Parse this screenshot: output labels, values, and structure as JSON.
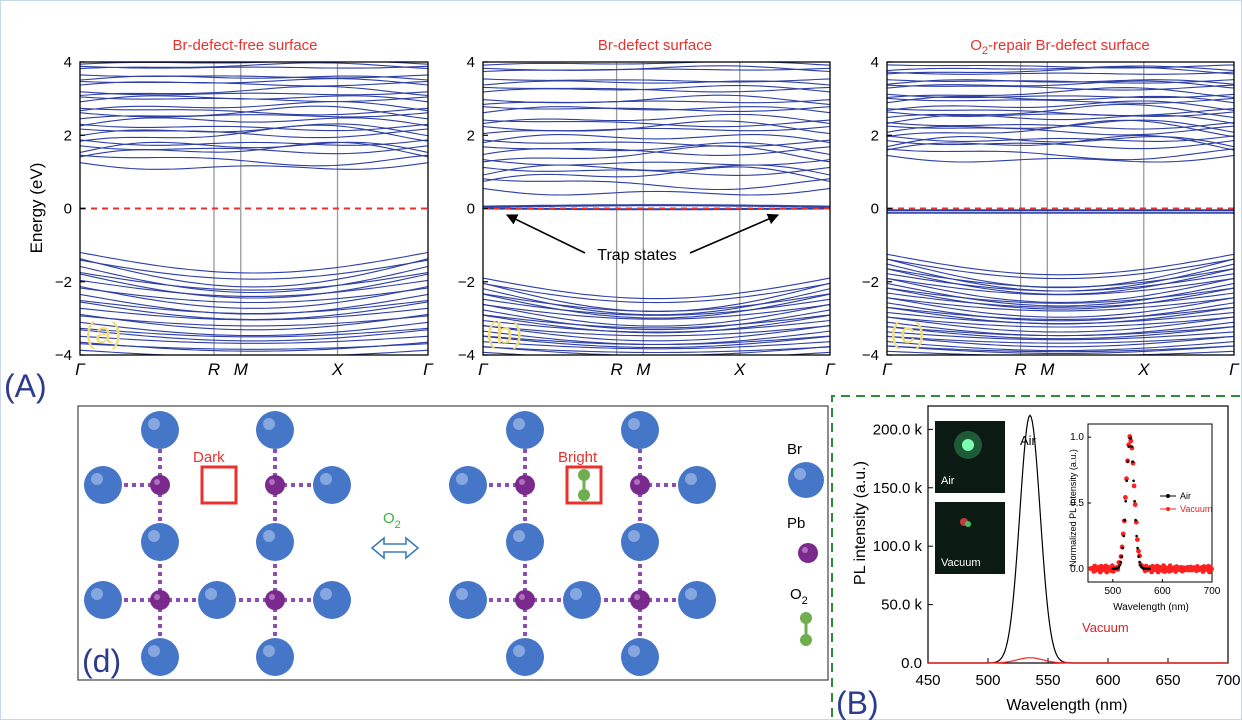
{
  "figure": {
    "label_A": "(A)",
    "label_B": "(B)",
    "label_d": "(d)"
  },
  "band_panels": {
    "ylabel": "Energy (eV)",
    "yticks": [
      "4",
      "2",
      "0",
      "−2",
      "−4"
    ],
    "xticks": [
      "Γ",
      "R",
      "M",
      "X",
      "Γ"
    ],
    "panels": [
      {
        "title": "Br-defect-free surface",
        "label": "(a)"
      },
      {
        "title": "Br-defect surface",
        "label": "(b)",
        "annotation": "Trap states"
      },
      {
        "title_prefix": "O",
        "title_sub": "2",
        "title_rest": "-repair Br-defect surface",
        "label": "(c)"
      }
    ]
  },
  "schematic": {
    "dark_label": "Dark",
    "bright_label": "Bright",
    "arrow_label_prefix": "O",
    "arrow_label_sub": "2",
    "legend": [
      {
        "name": "Br",
        "color": "#3f6fc4"
      },
      {
        "name": "Pb",
        "color": "#7a2a8c"
      },
      {
        "name_prefix": "O",
        "name_sub": "2",
        "color": "#6fae4f"
      }
    ]
  },
  "pl_panel": {
    "photo_labels": [
      "Air",
      "Vacuum"
    ],
    "air_label": "Air",
    "vacuum_label": "Vacuum",
    "inset_legend": [
      "Air",
      "Vacuum"
    ]
  },
  "chart_data": [
    {
      "type": "line",
      "title": "Br-defect-free surface",
      "ylabel": "Energy (eV)",
      "ylim": [
        -4,
        4
      ],
      "x_ticks": [
        "Γ",
        "R",
        "M",
        "X",
        "Γ"
      ],
      "series": [
        {
          "values": [
            0,
            0,
            0,
            0,
            0
          ]
        }
      ]
    },
    {
      "type": "line",
      "title": "Br-defect surface",
      "ylim": [
        -4,
        4
      ],
      "x_ticks": [
        "Γ",
        "R",
        "M",
        "X",
        "Γ"
      ],
      "annotations": [
        "Trap states"
      ],
      "series": [
        {
          "values": [
            0,
            0,
            0,
            0,
            0
          ]
        }
      ]
    },
    {
      "type": "line",
      "title": "O2-repair Br-defect surface",
      "ylim": [
        -4,
        4
      ],
      "x_ticks": [
        "Γ",
        "R",
        "M",
        "X",
        "Γ"
      ],
      "series": [
        {
          "values": [
            0,
            0,
            0,
            0,
            0
          ]
        }
      ]
    },
    {
      "type": "line",
      "xlabel": "Wavelength (nm)",
      "ylabel": "PL intensity (a.u.)",
      "xlim": [
        450,
        700
      ],
      "ylim": [
        0,
        220000
      ],
      "x_ticks": [
        "450",
        "500",
        "550",
        "600",
        "650",
        "700"
      ],
      "y_ticks": [
        "0.0",
        "50.0 k",
        "100.0 k",
        "150.0 k",
        "200.0 k"
      ],
      "series": [
        {
          "name": "Air",
          "peak_x": 535,
          "peak_y": 212000,
          "fwhm": 20,
          "color": "#000000"
        },
        {
          "name": "Vacuum",
          "peak_x": 535,
          "peak_y": 4500,
          "fwhm": 25,
          "color": "#ff2020"
        }
      ]
    },
    {
      "type": "scatter",
      "xlabel": "Wavelength (nm)",
      "ylabel": "Normalized PL intensity (a.u.)",
      "xlim": [
        450,
        700
      ],
      "ylim": [
        -0.1,
        1.1
      ],
      "x_ticks": [
        "500",
        "600",
        "700"
      ],
      "y_ticks": [
        "0.0",
        "0.5",
        "1.0"
      ],
      "series": [
        {
          "name": "Air",
          "peak_x": 535,
          "peak_y": 1.0,
          "color": "#000000"
        },
        {
          "name": "Vacuum",
          "peak_x": 535,
          "peak_y": 1.0,
          "color": "#ff2020"
        }
      ]
    }
  ]
}
